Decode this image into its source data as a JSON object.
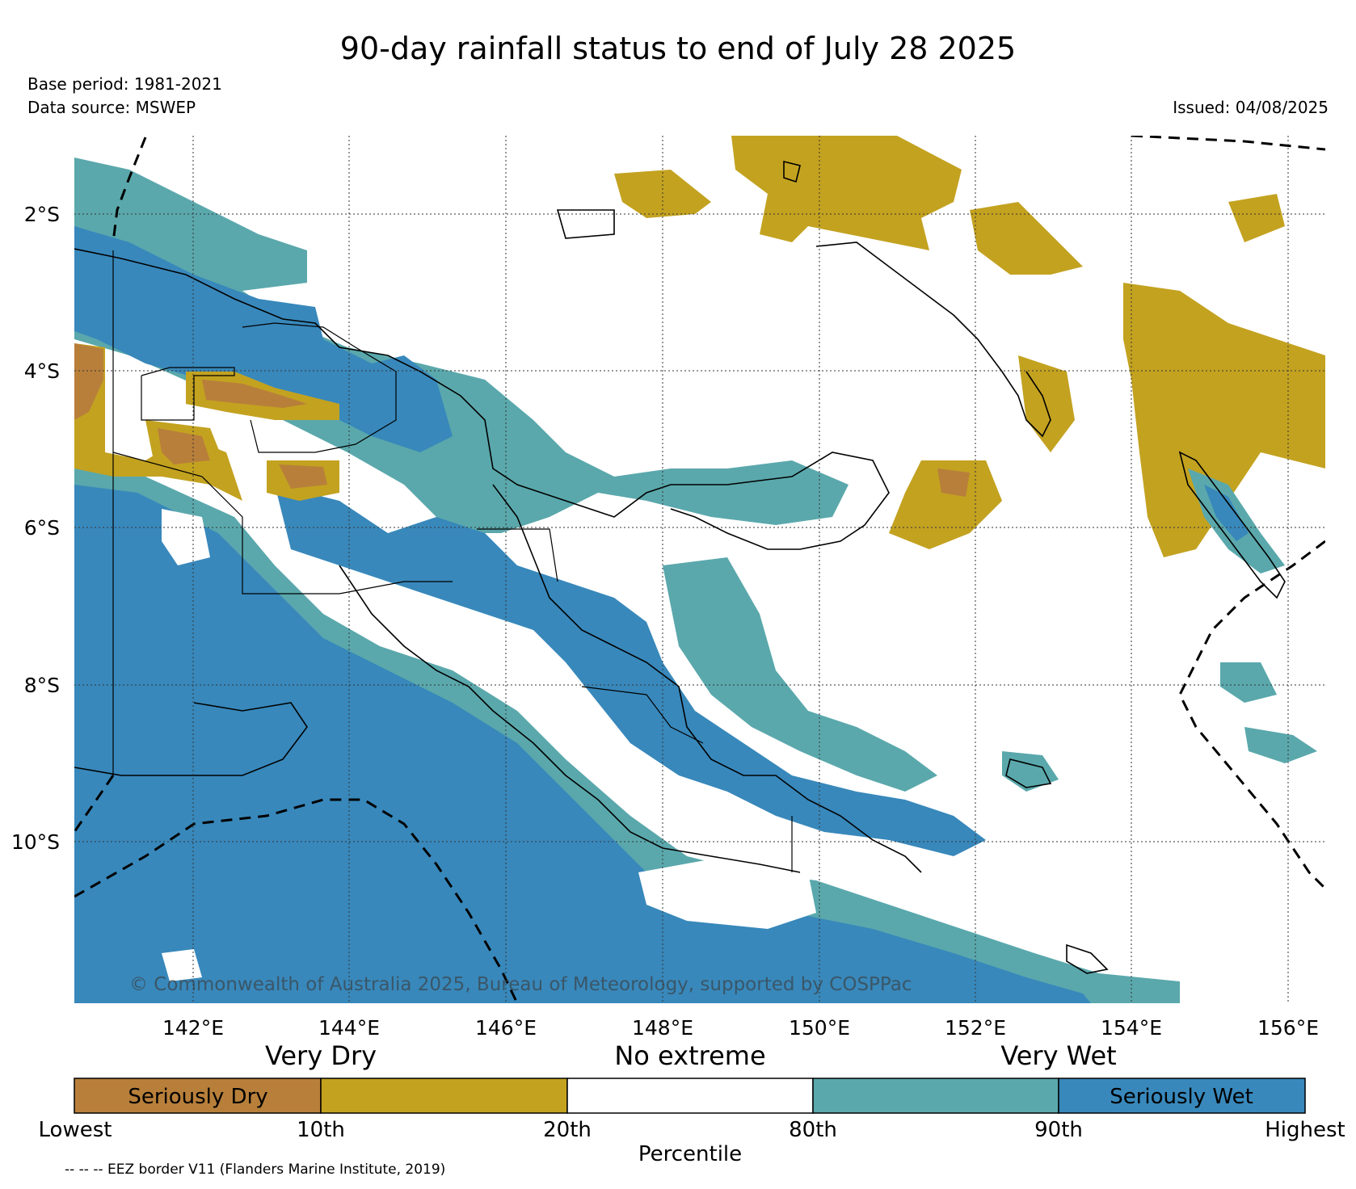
{
  "title": "90-day rainfall status to end of July 28 2025",
  "meta": {
    "base_period": "Base period: 1981-2021",
    "data_source": "Data source: MSWEP",
    "issued": "Issued: 04/08/2025"
  },
  "map": {
    "lat_labels": [
      "2°S",
      "4°S",
      "6°S",
      "8°S",
      "10°S"
    ],
    "lon_labels": [
      "142°E",
      "144°E",
      "146°E",
      "148°E",
      "150°E",
      "152°E",
      "154°E",
      "156°E"
    ],
    "copyright": "© Commonwealth of Australia 2025, Bureau of Meteorology, supported by COSPPac",
    "colors": {
      "seriously_dry": "#b87f3a",
      "very_dry": "#c3a220",
      "no_extreme": "#ffffff",
      "very_wet": "#5aa8ac",
      "seriously_wet": "#3888bb"
    }
  },
  "legend": {
    "category_labels": [
      "Very Dry",
      "No extreme",
      "Very Wet"
    ],
    "box_labels": [
      "Seriously Dry",
      "",
      "",
      "",
      "Seriously Wet"
    ],
    "percentiles": [
      "Lowest",
      "10th",
      "20th",
      "80th",
      "90th",
      "Highest"
    ],
    "axis_label": "Percentile"
  },
  "eez_note": "-- -- -- EEZ border V11 (Flanders Marine Institute, 2019)"
}
